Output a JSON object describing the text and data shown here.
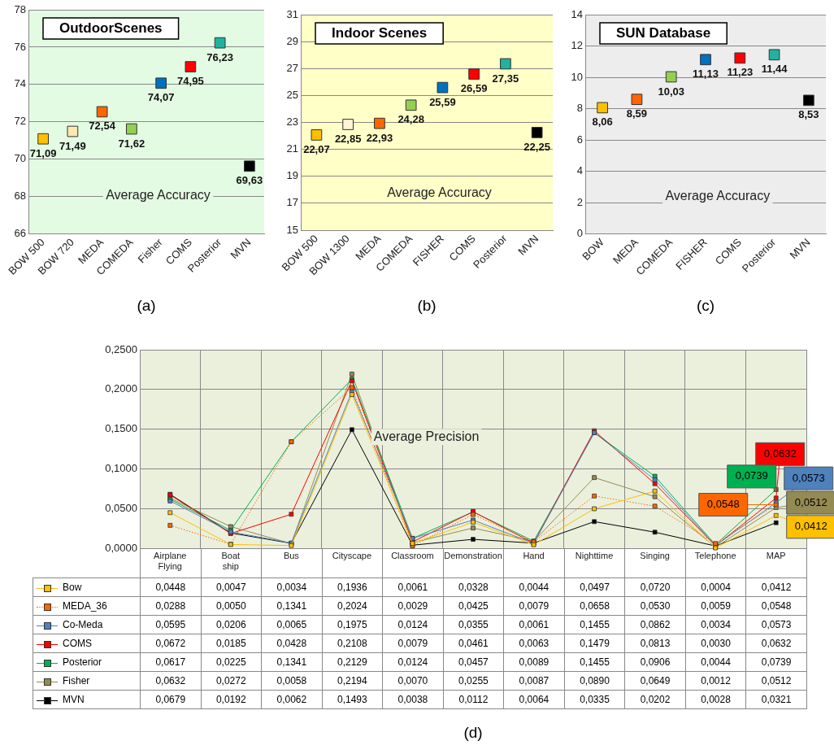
{
  "chart_data": [
    {
      "type": "scatter",
      "title": "OutdoorScenes",
      "categories": [
        "BOW 500",
        "BOW 720",
        "MEDA",
        "COMEDA",
        "Fisher",
        "COMS",
        "Posterior",
        "MVN"
      ],
      "values": [
        71.09,
        71.49,
        72.54,
        71.62,
        74.07,
        74.95,
        76.23,
        69.63
      ],
      "value_labels": [
        "71,09",
        "71,49",
        "72,54",
        "71,62",
        "74,07",
        "74,95",
        "76,23",
        "69,63"
      ],
      "colors": [
        "#ffc000",
        "#fde9b0",
        "#ff6600",
        "#92d050",
        "#0070c0",
        "#ff0000",
        "#20b2a0",
        "#000000"
      ],
      "ylim": [
        66,
        78
      ],
      "yticks": [
        66,
        68,
        70,
        72,
        74,
        76,
        78
      ],
      "grid": "y",
      "marker": "square",
      "annotations": [
        "Average Accuracy",
        "(a)"
      ]
    },
    {
      "type": "scatter",
      "title": "Indoor Scenes",
      "categories": [
        "BOW 500",
        "BOW 1300",
        "MEDA",
        "COMEDA",
        "FISHER",
        "COMS",
        "Posterior",
        "MVN"
      ],
      "values": [
        22.07,
        22.85,
        22.93,
        24.28,
        25.59,
        26.59,
        27.35,
        22.25
      ],
      "value_labels": [
        "22,07",
        "22,85",
        "22,93",
        "24,28",
        "25,59",
        "26,59",
        "27,35",
        "22,25"
      ],
      "colors": [
        "#ffc000",
        "#fff4d6",
        "#ff6600",
        "#92d050",
        "#0070c0",
        "#ff0000",
        "#20b2a0",
        "#000000"
      ],
      "ylim": [
        15,
        31
      ],
      "yticks": [
        15,
        17,
        19,
        21,
        23,
        25,
        27,
        29,
        31
      ],
      "grid": "y",
      "marker": "square",
      "annotations": [
        "Average Accuracy",
        "(b)"
      ]
    },
    {
      "type": "scatter",
      "title": "SUN Database",
      "categories": [
        "BOW",
        "MEDA",
        "COMEDA",
        "FISHER",
        "COMS",
        "Posterior",
        "MVN"
      ],
      "values": [
        8.06,
        8.59,
        10.03,
        11.13,
        11.23,
        11.44,
        8.53
      ],
      "value_labels": [
        "8,06",
        "8,59",
        "10,03",
        "11,13",
        "11,23",
        "11,44",
        "8,53"
      ],
      "colors": [
        "#ffc000",
        "#ff6600",
        "#92d050",
        "#0070c0",
        "#ff0000",
        "#20b2a0",
        "#000000"
      ],
      "ylim": [
        0,
        14
      ],
      "yticks": [
        0,
        2,
        4,
        6,
        8,
        10,
        12,
        14
      ],
      "grid": "y",
      "marker": "square",
      "annotations": [
        "Average Accuracy",
        "(c)"
      ]
    },
    {
      "type": "line",
      "categories": [
        "Airplane Flying",
        "Boat ship",
        "Bus",
        "Cityscape",
        "Classroom",
        "Demonstration",
        "Hand",
        "Nighttime",
        "Singing",
        "Telephone",
        "MAP"
      ],
      "series": [
        {
          "name": "Bow",
          "color": "#ffc000",
          "values": [
            0.0448,
            0.0047,
            0.0034,
            0.1936,
            0.0061,
            0.0328,
            0.0044,
            0.0497,
            0.072,
            0.0004,
            0.0412
          ],
          "value_labels": [
            "0,0448",
            "0,0047",
            "0,0034",
            "0,1936",
            "0,0061",
            "0,0328",
            "0,0044",
            "0,0497",
            "0,0720",
            "0,0004",
            "0,0412"
          ]
        },
        {
          "name": "MEDA_36",
          "color": "#ff6600",
          "line_style": "dotted",
          "values": [
            0.0288,
            0.005,
            0.1341,
            0.2024,
            0.0029,
            0.0425,
            0.0079,
            0.0658,
            0.053,
            0.0059,
            0.0548
          ],
          "value_labels": [
            "0,0288",
            "0,0050",
            "0,1341",
            "0,2024",
            "0,0029",
            "0,0425",
            "0,0079",
            "0,0658",
            "0,0530",
            "0,0059",
            "0,0548"
          ]
        },
        {
          "name": "Co-Meda",
          "color": "#4f81bd",
          "values": [
            0.0595,
            0.0206,
            0.0065,
            0.1975,
            0.0124,
            0.0355,
            0.0061,
            0.1455,
            0.0862,
            0.0034,
            0.0573
          ],
          "value_labels": [
            "0,0595",
            "0,0206",
            "0,0065",
            "0,1975",
            "0,0124",
            "0,0355",
            "0,0061",
            "0,1455",
            "0,0862",
            "0,0034",
            "0,0573"
          ]
        },
        {
          "name": "COMS",
          "color": "#ff0000",
          "values": [
            0.0672,
            0.0185,
            0.0428,
            0.2108,
            0.0079,
            0.0461,
            0.0063,
            0.1479,
            0.0813,
            0.003,
            0.0632
          ],
          "value_labels": [
            "0,0672",
            "0,0185",
            "0,0428",
            "0,2108",
            "0,0079",
            "0,0461",
            "0,0063",
            "0,1479",
            "0,0813",
            "0,0030",
            "0,0632"
          ]
        },
        {
          "name": "Posterior",
          "color": "#00b050",
          "values": [
            0.0617,
            0.0225,
            0.1341,
            0.2129,
            0.0124,
            0.0457,
            0.0089,
            0.1455,
            0.0906,
            0.0044,
            0.0739
          ],
          "value_labels": [
            "0,0617",
            "0,0225",
            "0,1341",
            "0,2129",
            "0,0124",
            "0,0457",
            "0,0089",
            "0,1455",
            "0,0906",
            "0,0044",
            "0,0739"
          ]
        },
        {
          "name": "Fisher",
          "color": "#948a54",
          "values": [
            0.0632,
            0.0272,
            0.0058,
            0.2194,
            0.007,
            0.0255,
            0.0087,
            0.089,
            0.0649,
            0.0012,
            0.0512
          ],
          "value_labels": [
            "0,0632",
            "0,0272",
            "0,0058",
            "0,2194",
            "0,0070",
            "0,0255",
            "0,0087",
            "0,0890",
            "0,0649",
            "0,0012",
            "0,0512"
          ]
        },
        {
          "name": "MVN",
          "color": "#000000",
          "values": [
            0.0679,
            0.0192,
            0.0062,
            0.1493,
            0.0038,
            0.0112,
            0.0064,
            0.0335,
            0.0202,
            0.0028,
            0.0321
          ],
          "value_labels": [
            "0,0679",
            "0,0192",
            "0,0062",
            "0,1493",
            "0,0038",
            "0,0112",
            "0,0064",
            "0,0335",
            "0,0202",
            "0,0028",
            "0,0321"
          ]
        }
      ],
      "ylim": [
        0,
        0.25
      ],
      "yticks": [
        {
          "value": 0,
          "label": "0,0000"
        },
        {
          "value": 0.05,
          "label": "0,0500"
        },
        {
          "value": 0.1,
          "label": "0,1000"
        },
        {
          "value": 0.15,
          "label": "0,1500"
        },
        {
          "value": 0.2,
          "label": "0,2000"
        },
        {
          "value": 0.25,
          "label": "0,2500"
        }
      ],
      "grid": true,
      "marker": "square",
      "legend": "bottom",
      "annotations": [
        "Average Precision",
        {
          "text": "0,0632",
          "x": "MAP",
          "y": 0.0632
        },
        {
          "text": "0,0739",
          "x": "MAP",
          "y": 0.0739
        },
        {
          "text": "0,0573",
          "x": "MAP",
          "y": 0.0573
        },
        {
          "text": "0,0548",
          "x": "MAP",
          "y": 0.0548
        },
        {
          "text": "0,0512",
          "x": "MAP",
          "y": 0.0512
        },
        {
          "text": "0,0412",
          "x": "MAP",
          "y": 0.0412
        },
        "(d)"
      ]
    }
  ]
}
